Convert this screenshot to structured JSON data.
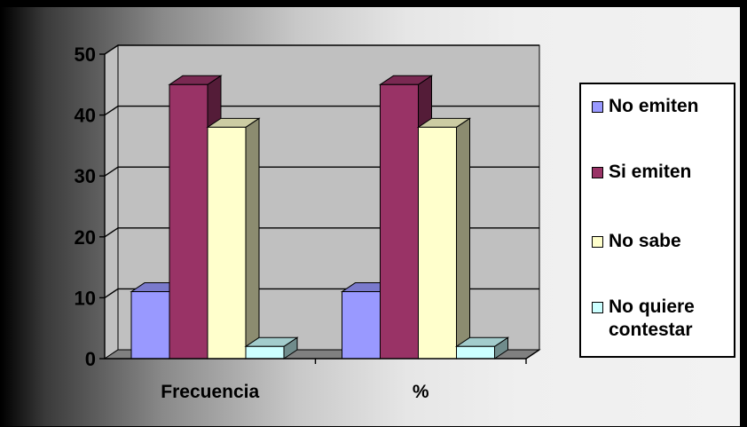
{
  "chart_data": {
    "type": "bar",
    "three_d": true,
    "categories": [
      "Frecuencia",
      "%"
    ],
    "series": [
      {
        "name": "No emiten",
        "values": [
          11,
          11
        ],
        "color": "#9999ff"
      },
      {
        "name": "Si emiten",
        "values": [
          45,
          45
        ],
        "color": "#993366"
      },
      {
        "name": "No sabe",
        "values": [
          38,
          38
        ],
        "color": "#ffffcc"
      },
      {
        "name": "No quiere contestar",
        "values": [
          2,
          2
        ],
        "color": "#ccffff"
      }
    ],
    "yticks": [
      "0",
      "10",
      "20",
      "30",
      "40",
      "50"
    ],
    "ylim": [
      0,
      50
    ],
    "grid": true,
    "legend_position": "right",
    "walls_color": "#c0c0c0",
    "floor_color": "#808080"
  },
  "legend": {
    "items": [
      {
        "label_lines": [
          "No emiten"
        ]
      },
      {
        "label_lines": [
          "Si emiten"
        ]
      },
      {
        "label_lines": [
          "No sabe"
        ]
      },
      {
        "label_lines": [
          "No quiere",
          "contestar"
        ]
      }
    ]
  }
}
